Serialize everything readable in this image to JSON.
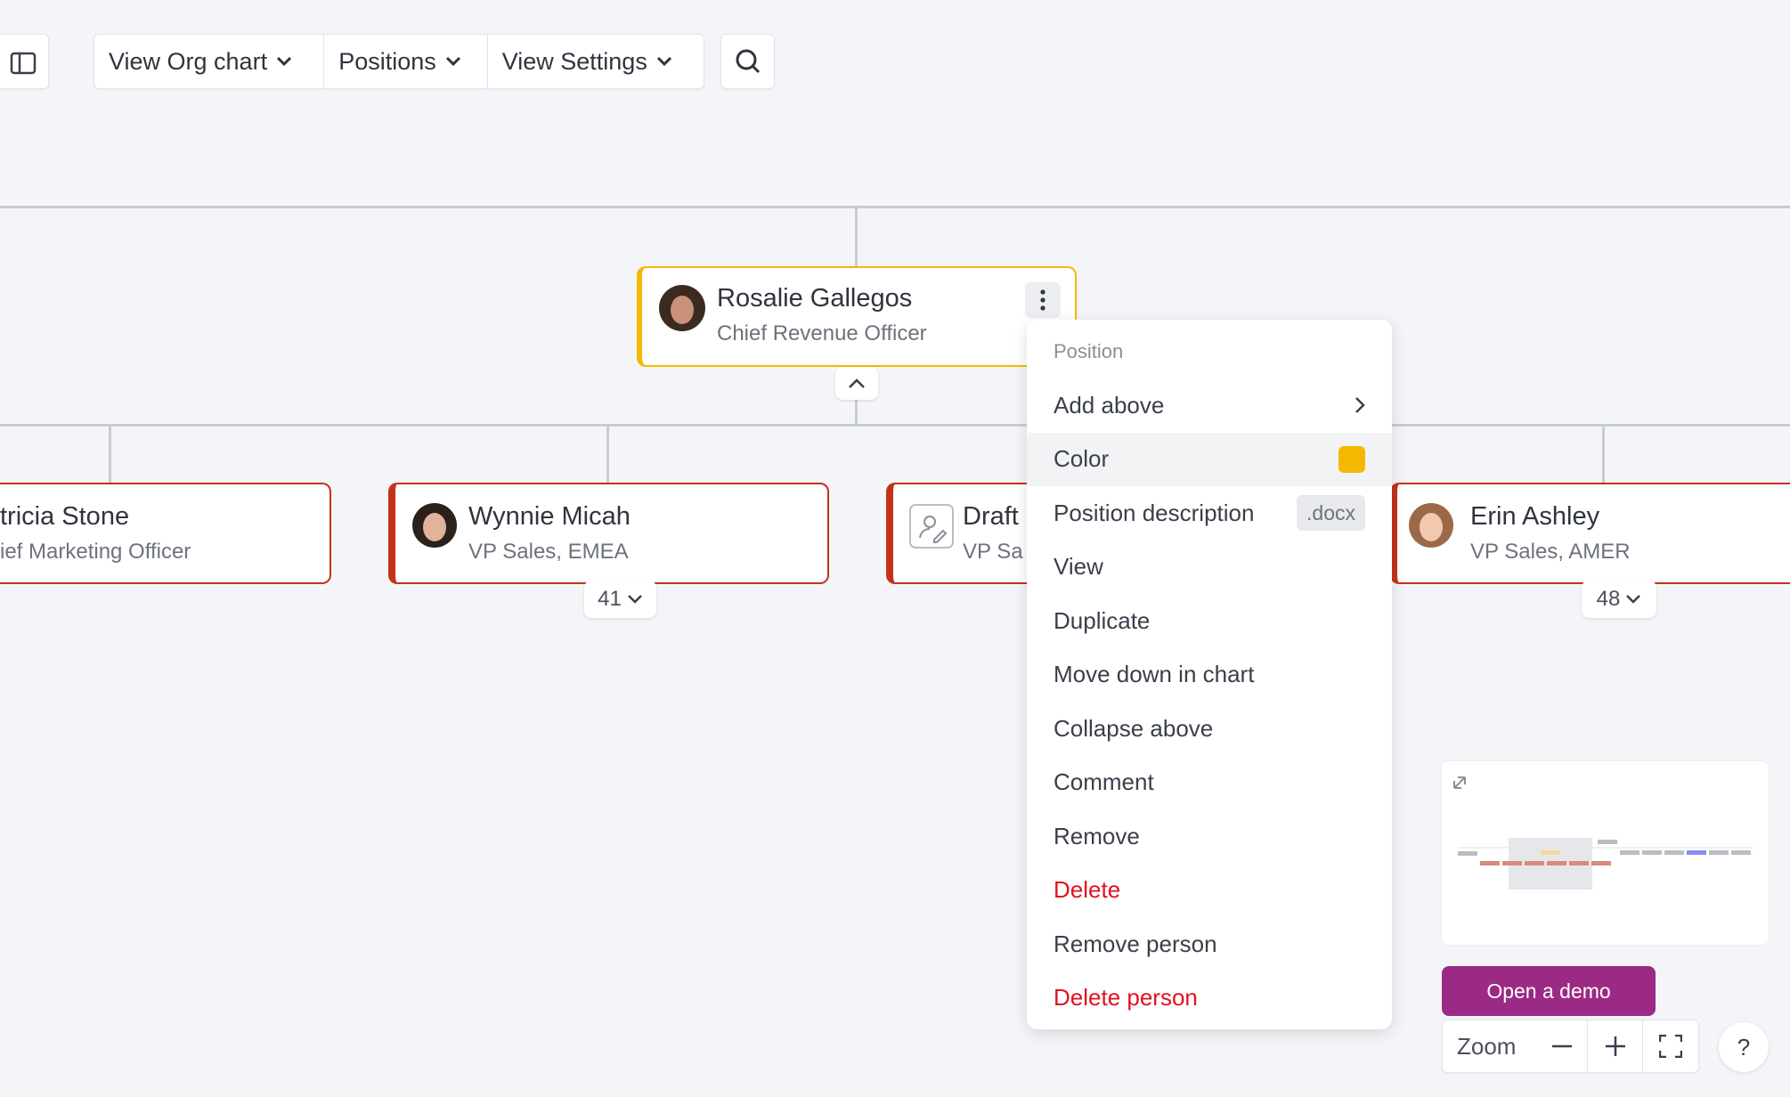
{
  "toolbar": {
    "view_org_chart": "View Org chart",
    "positions": "Positions",
    "view_settings": "View Settings"
  },
  "nodes": [
    {
      "name": "Rosalie Gallegos",
      "title": "Chief Revenue Officer"
    },
    {
      "name": "tricia Stone",
      "title": "ief Marketing Officer"
    },
    {
      "name": "Wynnie Micah",
      "title": "VP Sales, EMEA",
      "count": 41
    },
    {
      "name": "Draft",
      "title": "VP Sa"
    },
    {
      "name": "Erin Ashley",
      "title": "VP Sales, AMER",
      "count": 48
    }
  ],
  "menu": {
    "header": "Position",
    "items": [
      "Add above",
      "Color",
      "Position description",
      "View",
      "Duplicate",
      "Move down in chart",
      "Collapse above",
      "Comment",
      "Remove",
      "Delete",
      "Remove person",
      "Delete person"
    ],
    "docx": ".docx"
  },
  "controls": {
    "open_demo": "Open a demo",
    "zoom": "Zoom",
    "help": "?"
  }
}
